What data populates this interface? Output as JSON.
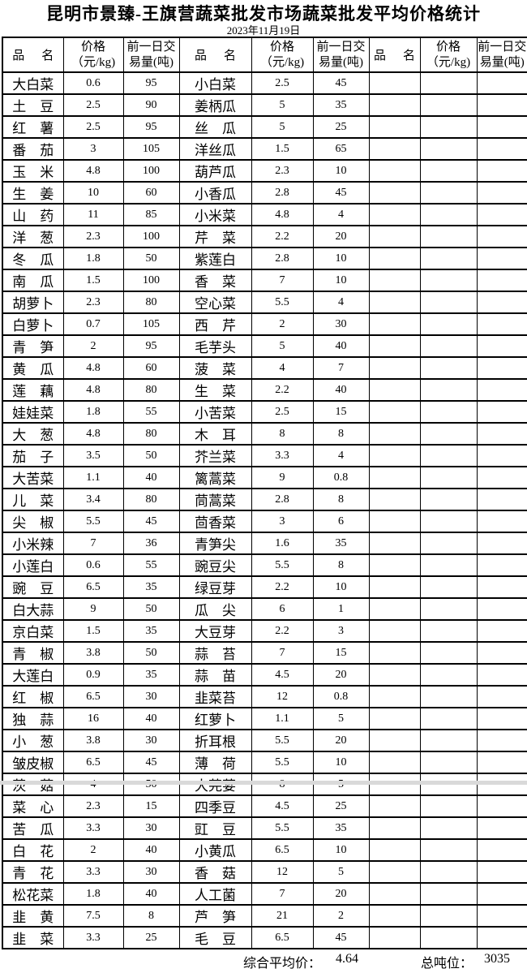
{
  "title": "昆明市景臻-王旗营蔬菜批发市场蔬菜批发平均价格统计",
  "date": "2023年11月19日",
  "table": {
    "row_count": 40,
    "column_headers": {
      "name": "品名",
      "price": "价格（元/kg)",
      "volume": "前一日交易量(吨)"
    },
    "groups": [
      {
        "rows": [
          {
            "name": "大白菜",
            "price": "0.6",
            "volume": "95"
          },
          {
            "name": "土豆",
            "price": "2.5",
            "volume": "90"
          },
          {
            "name": "红薯",
            "price": "2.5",
            "volume": "95"
          },
          {
            "name": "番茄",
            "price": "3",
            "volume": "105"
          },
          {
            "name": "玉米",
            "price": "4.8",
            "volume": "100"
          },
          {
            "name": "生姜",
            "price": "10",
            "volume": "60"
          },
          {
            "name": "山药",
            "price": "11",
            "volume": "85"
          },
          {
            "name": "洋葱",
            "price": "2.3",
            "volume": "100"
          },
          {
            "name": "冬瓜",
            "price": "1.8",
            "volume": "50"
          },
          {
            "name": "南瓜",
            "price": "1.5",
            "volume": "100"
          },
          {
            "name": "胡萝卜",
            "price": "2.3",
            "volume": "80"
          },
          {
            "name": "白萝卜",
            "price": "0.7",
            "volume": "105"
          },
          {
            "name": "青笋",
            "price": "2",
            "volume": "95"
          },
          {
            "name": "黄瓜",
            "price": "4.8",
            "volume": "60"
          },
          {
            "name": "莲藕",
            "price": "4.8",
            "volume": "80"
          },
          {
            "name": "娃娃菜",
            "price": "1.8",
            "volume": "55"
          },
          {
            "name": "大葱",
            "price": "4.8",
            "volume": "80"
          },
          {
            "name": "茄子",
            "price": "3.5",
            "volume": "50"
          },
          {
            "name": "大苦菜",
            "price": "1.1",
            "volume": "40"
          },
          {
            "name": "儿菜",
            "price": "3.4",
            "volume": "80"
          },
          {
            "name": "尖椒",
            "price": "5.5",
            "volume": "45"
          },
          {
            "name": "小米辣",
            "price": "7",
            "volume": "36"
          },
          {
            "name": "小莲白",
            "price": "0.6",
            "volume": "55"
          },
          {
            "name": "豌豆",
            "price": "6.5",
            "volume": "35"
          },
          {
            "name": "白大蒜",
            "price": "9",
            "volume": "50"
          },
          {
            "name": "京白菜",
            "price": "1.5",
            "volume": "35"
          },
          {
            "name": "青椒",
            "price": "3.8",
            "volume": "50"
          },
          {
            "name": "大莲白",
            "price": "0.9",
            "volume": "35"
          },
          {
            "name": "红椒",
            "price": "6.5",
            "volume": "30"
          },
          {
            "name": "独蒜",
            "price": "16",
            "volume": "40"
          },
          {
            "name": "小葱",
            "price": "3.8",
            "volume": "30"
          },
          {
            "name": "皱皮椒",
            "price": "6.5",
            "volume": "45"
          },
          {
            "name": "茨菇",
            "price": "4",
            "volume": "50"
          },
          {
            "name": "菜心",
            "price": "2.3",
            "volume": "15"
          },
          {
            "name": "苦瓜",
            "price": "3.3",
            "volume": "30"
          },
          {
            "name": "白花",
            "price": "2",
            "volume": "40"
          },
          {
            "name": "青花",
            "price": "3.3",
            "volume": "30"
          },
          {
            "name": "松花菜",
            "price": "1.8",
            "volume": "40"
          },
          {
            "name": "韭黄",
            "price": "7.5",
            "volume": "8"
          },
          {
            "name": "韭菜",
            "price": "3.3",
            "volume": "25"
          }
        ]
      },
      {
        "rows": [
          {
            "name": "小白菜",
            "price": "2.5",
            "volume": "45"
          },
          {
            "name": "姜柄瓜",
            "price": "5",
            "volume": "35"
          },
          {
            "name": "丝瓜",
            "price": "5",
            "volume": "25"
          },
          {
            "name": "洋丝瓜",
            "price": "1.5",
            "volume": "65"
          },
          {
            "name": "葫芦瓜",
            "price": "2.3",
            "volume": "10"
          },
          {
            "name": "小香瓜",
            "price": "2.8",
            "volume": "45"
          },
          {
            "name": "小米菜",
            "price": "4.8",
            "volume": "4"
          },
          {
            "name": "芹菜",
            "price": "2.2",
            "volume": "20"
          },
          {
            "name": "紫莲白",
            "price": "2.8",
            "volume": "10"
          },
          {
            "name": "香菜",
            "price": "7",
            "volume": "10"
          },
          {
            "name": "空心菜",
            "price": "5.5",
            "volume": "4"
          },
          {
            "name": "西芹",
            "price": "2",
            "volume": "30"
          },
          {
            "name": "毛芋头",
            "price": "5",
            "volume": "40"
          },
          {
            "name": "菠菜",
            "price": "4",
            "volume": "7"
          },
          {
            "name": "生菜",
            "price": "2.2",
            "volume": "40"
          },
          {
            "name": "小苦菜",
            "price": "2.5",
            "volume": "15"
          },
          {
            "name": "木耳",
            "price": "8",
            "volume": "8"
          },
          {
            "name": "芥兰菜",
            "price": "3.3",
            "volume": "4"
          },
          {
            "name": "篱蒿菜",
            "price": "9",
            "volume": "0.8"
          },
          {
            "name": "茼蒿菜",
            "price": "2.8",
            "volume": "8"
          },
          {
            "name": "茴香菜",
            "price": "3",
            "volume": "6"
          },
          {
            "name": "青笋尖",
            "price": "1.6",
            "volume": "35"
          },
          {
            "name": "豌豆尖",
            "price": "5.5",
            "volume": "8"
          },
          {
            "name": "绿豆芽",
            "price": "2.2",
            "volume": "10"
          },
          {
            "name": "瓜尖",
            "price": "6",
            "volume": "1"
          },
          {
            "name": "大豆芽",
            "price": "2.2",
            "volume": "3"
          },
          {
            "name": "蒜苔",
            "price": "7",
            "volume": "15"
          },
          {
            "name": "蒜苗",
            "price": "4.5",
            "volume": "20"
          },
          {
            "name": "韭菜苔",
            "price": "12",
            "volume": "0.8"
          },
          {
            "name": "红萝卜",
            "price": "1.1",
            "volume": "5"
          },
          {
            "name": "折耳根",
            "price": "5.5",
            "volume": "20"
          },
          {
            "name": "薄荷",
            "price": "5.5",
            "volume": "10"
          },
          {
            "name": "大芫荽",
            "price": "8",
            "volume": "5"
          },
          {
            "name": "四季豆",
            "price": "4.5",
            "volume": "25"
          },
          {
            "name": "豇豆",
            "price": "5.5",
            "volume": "35"
          },
          {
            "name": "小黄瓜",
            "price": "6.5",
            "volume": "10"
          },
          {
            "name": "香菇",
            "price": "12",
            "volume": "5"
          },
          {
            "name": "人工菌",
            "price": "7",
            "volume": "20"
          },
          {
            "name": "芦笋",
            "price": "21",
            "volume": "2"
          },
          {
            "name": "毛豆",
            "price": "6.5",
            "volume": "45"
          }
        ]
      },
      {
        "rows": []
      }
    ]
  },
  "footer": {
    "avg_label": "综合平均价：",
    "avg_value": "4.64",
    "tonnage_label": "总吨位：",
    "tonnage_value": "3035"
  }
}
